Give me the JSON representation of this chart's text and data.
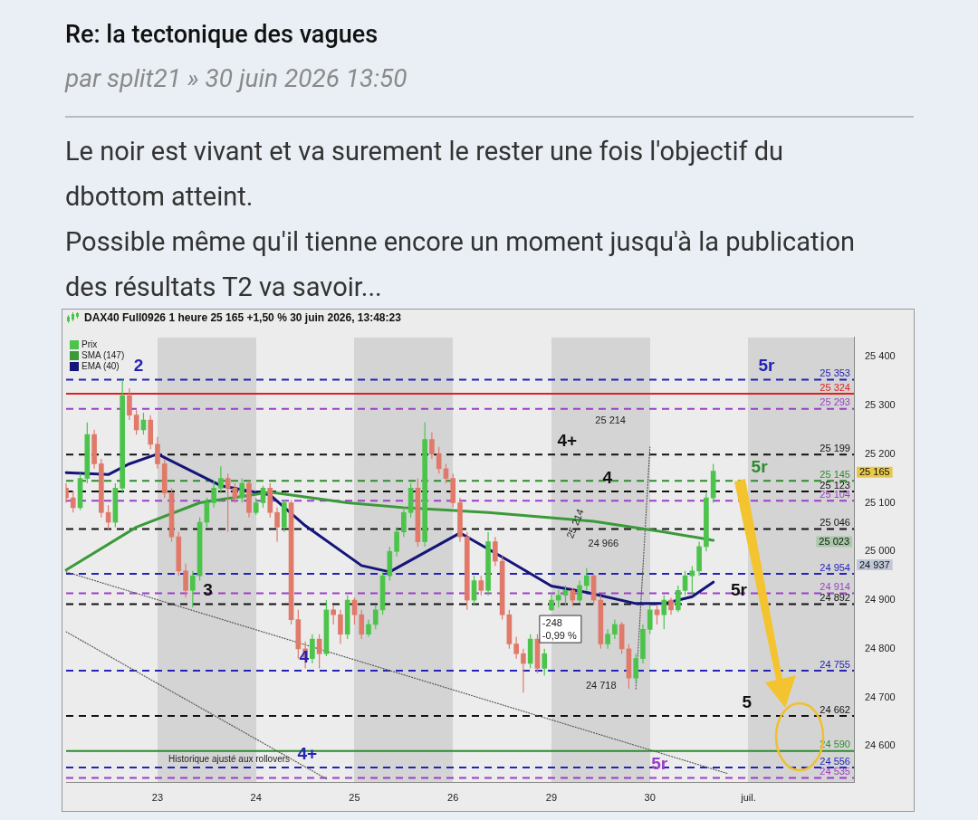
{
  "chart_data": {
    "type": "candlestick",
    "title": "Re: la tectonique des vagues",
    "subtitle": "par split21 » 30 juin 2026 13:50",
    "annotations": [
      "Le noir est vivant et va surement le rester une fois l'objectif du dbottom atteint.",
      "Possible même qu'il tienne encore un moment jusqu'à la publication des résultats T2 va savoir...",
      "DAX40 Full0926 1 heure 25 165 +1,50 % 30 juin 2026, 13:48:23",
      "Historique ajusté aux rollovers",
      "25 214",
      "25 214",
      "24 966",
      "24 718",
      "-248",
      "-0,99 %",
      "25 165",
      "25 023",
      "24 937",
      {
        "text": "2",
        "y": 25353
      },
      {
        "text": "3",
        "y": 24892
      },
      {
        "text": "4",
        "y": 24755
      },
      {
        "text": "4+",
        "y": 24556
      },
      {
        "text": "4+",
        "y": 25199
      },
      {
        "text": "4",
        "y": 25123
      },
      {
        "text": "5r",
        "y": 25353
      },
      {
        "text": "5r",
        "y": 25145
      },
      {
        "text": "5r",
        "y": 24892
      },
      {
        "text": "5",
        "y": 24662
      },
      {
        "text": "5r",
        "y": 24535
      }
    ],
    "categories": [
      null,
      null,
      null,
      null,
      null,
      null,
      null,
      null,
      null,
      null,
      null,
      null,
      null,
      "23",
      null,
      null,
      null,
      null,
      null,
      null,
      null,
      null,
      null,
      null,
      null,
      null,
      null,
      "24",
      null,
      null,
      null,
      null,
      null,
      null,
      null,
      null,
      null,
      null,
      null,
      null,
      null,
      "25",
      null,
      null,
      null,
      null,
      null,
      null,
      null,
      null,
      null,
      null,
      null,
      null,
      null,
      "26",
      null,
      null,
      null,
      null,
      null,
      null,
      null,
      null,
      null,
      null,
      null,
      null,
      null,
      "29",
      null,
      null,
      null,
      null,
      null,
      null,
      null,
      null,
      null,
      null,
      null,
      null,
      null,
      "30",
      null,
      null,
      null,
      null,
      null,
      null,
      null,
      null,
      null,
      null,
      null,
      null,
      null,
      "juil.",
      null,
      null,
      null,
      null,
      null,
      null,
      null,
      null,
      null,
      null,
      null,
      null,
      null,
      null,
      null
    ],
    "ylim": [
      24525,
      25440
    ],
    "yticks": [
      {
        "value": 24600,
        "label": "24 600"
      },
      {
        "value": 24700,
        "label": "24 700"
      },
      {
        "value": 24800,
        "label": "24 800"
      },
      {
        "value": 24900,
        "label": "24 900"
      },
      {
        "value": 25000,
        "label": "25 000"
      },
      {
        "value": 25100,
        "label": "25 100"
      },
      {
        "value": 25200,
        "label": "25 200"
      },
      {
        "value": 25300,
        "label": "25 300"
      },
      {
        "value": 25400,
        "label": "25 400"
      }
    ],
    "grid": false,
    "legend": "top left",
    "ref_lines": [
      {
        "axis": "y",
        "value": 25353,
        "label": "25 353",
        "color": "#2323b8",
        "line_style": "dashed"
      },
      {
        "axis": "y",
        "value": 25324,
        "label": "25 324",
        "color": "#e02020",
        "line_style": "solid"
      },
      {
        "axis": "y",
        "value": 25293,
        "label": "25 293",
        "color": "#9b3fc8",
        "line_style": "dashed"
      },
      {
        "axis": "y",
        "value": 25199,
        "label": "25 199",
        "color": "#111111",
        "line_style": "dashed"
      },
      {
        "axis": "y",
        "value": 25145,
        "label": "25 145",
        "color": "#2e8b2e",
        "line_style": "dashed"
      },
      {
        "axis": "y",
        "value": 25123,
        "label": "25 123",
        "color": "#111111",
        "line_style": "dashed"
      },
      {
        "axis": "y",
        "value": 25104,
        "label": "25 104",
        "color": "#9b3fc8",
        "line_style": "dashed"
      },
      {
        "axis": "y",
        "value": 25046,
        "label": "25 046",
        "color": "#111111",
        "line_style": "dashed"
      },
      {
        "axis": "y",
        "value": 24954,
        "label": "24 954",
        "color": "#2323b8",
        "line_style": "dashed"
      },
      {
        "axis": "y",
        "value": 24914,
        "label": "24 914",
        "color": "#9b3fc8",
        "line_style": "dashed"
      },
      {
        "axis": "y",
        "value": 24892,
        "label": "24 892",
        "color": "#111111",
        "line_style": "dashed"
      },
      {
        "axis": "y",
        "value": 24755,
        "label": "24 755",
        "color": "#2323b8",
        "line_style": "dashed"
      },
      {
        "axis": "y",
        "value": 24662,
        "label": "24 662",
        "color": "#111111",
        "line_style": "dashed"
      },
      {
        "axis": "y",
        "value": 24590,
        "label": "24 590",
        "color": "#2e8b2e",
        "line_style": "solid"
      },
      {
        "axis": "y",
        "value": 24556,
        "label": "24 556",
        "color": "#2323b8",
        "line_style": "dashed"
      },
      {
        "axis": "y",
        "value": 24535,
        "label": "24 535",
        "color": "#9b3fc8",
        "line_style": "dashed"
      }
    ],
    "series": [
      {
        "name": "Prix",
        "type": "candlestick",
        "color": "#4cc44c",
        "ohlc": [
          [
            25130,
            25140,
            25100,
            25110
          ],
          [
            25110,
            25125,
            25080,
            25090
          ],
          [
            25090,
            25160,
            25085,
            25150
          ],
          [
            25150,
            25265,
            25140,
            25240
          ],
          [
            25240,
            25250,
            25170,
            25180
          ],
          [
            25180,
            25190,
            25070,
            25080
          ],
          [
            25080,
            25095,
            25045,
            25060
          ],
          [
            25060,
            25140,
            25050,
            25130
          ],
          [
            25130,
            25353,
            25120,
            25320
          ],
          [
            25320,
            25335,
            25270,
            25280
          ],
          [
            25280,
            25290,
            25240,
            25250
          ],
          [
            25250,
            25285,
            25240,
            25270
          ],
          [
            25270,
            25280,
            25210,
            25220
          ],
          [
            25220,
            25235,
            25170,
            25180
          ],
          [
            25180,
            25190,
            25110,
            25120
          ],
          [
            25120,
            25130,
            25020,
            25030
          ],
          [
            25030,
            25040,
            24950,
            24960
          ],
          [
            24960,
            24975,
            24905,
            24920
          ],
          [
            24920,
            24960,
            24885,
            24950
          ],
          [
            24950,
            25070,
            24940,
            25060
          ],
          [
            25060,
            25110,
            25050,
            25100
          ],
          [
            25100,
            25145,
            25090,
            25130
          ],
          [
            25130,
            25175,
            25120,
            25150
          ],
          [
            25150,
            25160,
            25040,
            25130
          ],
          [
            25130,
            25140,
            25100,
            25110
          ],
          [
            25110,
            25150,
            25100,
            25140
          ],
          [
            25140,
            25145,
            25070,
            25080
          ],
          [
            25080,
            25110,
            25075,
            25100
          ],
          [
            25100,
            25135,
            25090,
            25130
          ],
          [
            25130,
            25140,
            25070,
            25080
          ],
          [
            25080,
            25090,
            25020,
            25050
          ],
          [
            25050,
            25105,
            25040,
            25100
          ],
          [
            25100,
            25105,
            24850,
            24860
          ],
          [
            24860,
            24880,
            24780,
            24800
          ],
          [
            24800,
            24815,
            24760,
            24780
          ],
          [
            24780,
            24830,
            24770,
            24820
          ],
          [
            24820,
            24830,
            24760,
            24790
          ],
          [
            24790,
            24900,
            24785,
            24880
          ],
          [
            24880,
            24890,
            24850,
            24870
          ],
          [
            24870,
            24880,
            24810,
            24830
          ],
          [
            24830,
            24910,
            24820,
            24900
          ],
          [
            24900,
            24905,
            24850,
            24870
          ],
          [
            24870,
            24880,
            24820,
            24830
          ],
          [
            24830,
            24860,
            24825,
            24850
          ],
          [
            24850,
            24890,
            24840,
            24880
          ],
          [
            24880,
            24960,
            24870,
            24950
          ],
          [
            24950,
            25010,
            24940,
            25000
          ],
          [
            25000,
            25050,
            24990,
            25040
          ],
          [
            25040,
            25090,
            25030,
            25080
          ],
          [
            25080,
            25140,
            25070,
            25130
          ],
          [
            25130,
            25150,
            25010,
            25020
          ],
          [
            25020,
            25265,
            25010,
            25230
          ],
          [
            25230,
            25245,
            25190,
            25200
          ],
          [
            25200,
            25215,
            25160,
            25170
          ],
          [
            25170,
            25180,
            25140,
            25150
          ],
          [
            25150,
            25160,
            25090,
            25100
          ],
          [
            25100,
            25110,
            25020,
            25030
          ],
          [
            25030,
            25040,
            24880,
            24900
          ],
          [
            24900,
            24950,
            24890,
            24940
          ],
          [
            24940,
            24950,
            24910,
            24920
          ],
          [
            24920,
            25040,
            24910,
            25020
          ],
          [
            25020,
            25030,
            24970,
            24980
          ],
          [
            24980,
            24990,
            24860,
            24870
          ],
          [
            24870,
            24880,
            24800,
            24810
          ],
          [
            24810,
            24825,
            24780,
            24790
          ],
          [
            24790,
            24800,
            24710,
            24770
          ],
          [
            24770,
            24830,
            24760,
            24820
          ],
          [
            24820,
            24830,
            24750,
            24760
          ],
          [
            24760,
            24800,
            24745,
            24790
          ],
          [
            24880,
            24915,
            24878,
            24900
          ],
          [
            24900,
            24920,
            24885,
            24910
          ],
          [
            24910,
            24930,
            24890,
            24920
          ],
          [
            24920,
            24925,
            24888,
            24900
          ],
          [
            24900,
            24940,
            24895,
            24930
          ],
          [
            24930,
            24966,
            24920,
            24950
          ],
          [
            24950,
            24955,
            24890,
            24900
          ],
          [
            24900,
            24910,
            24800,
            24810
          ],
          [
            24810,
            24840,
            24800,
            24830
          ],
          [
            24830,
            24860,
            24820,
            24850
          ],
          [
            24850,
            24855,
            24790,
            24800
          ],
          [
            24800,
            24810,
            24718,
            24740
          ],
          [
            24740,
            24790,
            24730,
            24780
          ],
          [
            24780,
            24850,
            24770,
            24840
          ],
          [
            24840,
            24890,
            24830,
            24880
          ],
          [
            24880,
            24890,
            24850,
            24870
          ],
          [
            24870,
            24910,
            24840,
            24900
          ],
          [
            24900,
            24905,
            24870,
            24880
          ],
          [
            24880,
            24930,
            24875,
            24920
          ],
          [
            24920,
            24960,
            24910,
            24950
          ],
          [
            24950,
            24970,
            24910,
            24960
          ],
          [
            24960,
            25020,
            24950,
            25010
          ],
          [
            25010,
            25120,
            25000,
            25110
          ],
          [
            25110,
            25180,
            25100,
            25165
          ],
          null,
          null,
          null,
          null,
          null,
          null,
          null,
          null,
          null,
          null,
          null,
          null,
          null,
          null,
          null,
          null,
          null,
          null,
          null,
          null
        ],
        "colors": [
          "#e07a6a",
          "#e07a6a",
          "#4cc44c",
          "#4cc44c",
          "#e07a6a",
          "#e07a6a",
          "#e07a6a",
          "#4cc44c",
          "#4cc44c",
          "#e07a6a",
          "#e07a6a",
          "#4cc44c",
          "#e07a6a",
          "#e07a6a",
          "#e07a6a",
          "#e07a6a",
          "#e07a6a",
          "#e07a6a",
          "#4cc44c",
          "#4cc44c",
          "#4cc44c",
          "#4cc44c",
          "#4cc44c",
          "#e07a6a",
          "#e07a6a",
          "#4cc44c",
          "#e07a6a",
          "#4cc44c",
          "#4cc44c",
          "#e07a6a",
          "#e07a6a",
          "#4cc44c",
          "#e07a6a",
          "#e07a6a",
          "#e07a6a",
          "#4cc44c",
          "#e07a6a",
          "#4cc44c",
          "#e07a6a",
          "#e07a6a",
          "#4cc44c",
          "#e07a6a",
          "#e07a6a",
          "#4cc44c",
          "#4cc44c",
          "#4cc44c",
          "#4cc44c",
          "#4cc44c",
          "#4cc44c",
          "#4cc44c",
          "#e07a6a",
          "#4cc44c",
          "#e07a6a",
          "#e07a6a",
          "#e07a6a",
          "#e07a6a",
          "#e07a6a",
          "#e07a6a",
          "#4cc44c",
          "#e07a6a",
          "#4cc44c",
          "#e07a6a",
          "#e07a6a",
          "#e07a6a",
          "#e07a6a",
          "#e07a6a",
          "#4cc44c",
          "#e07a6a",
          "#4cc44c",
          "#4cc44c",
          "#4cc44c",
          "#4cc44c",
          "#e07a6a",
          "#4cc44c",
          "#4cc44c",
          "#e07a6a",
          "#e07a6a",
          "#4cc44c",
          "#4cc44c",
          "#e07a6a",
          "#e07a6a",
          "#4cc44c",
          "#4cc44c",
          "#4cc44c",
          "#e07a6a",
          "#4cc44c",
          "#e07a6a",
          "#4cc44c",
          "#4cc44c",
          "#4cc44c",
          "#4cc44c",
          "#4cc44c",
          "#4cc44c",
          null,
          null,
          null,
          null,
          null,
          null,
          null,
          null,
          null,
          null,
          null,
          null,
          null,
          null,
          null,
          null,
          null,
          null,
          null,
          null
        ]
      },
      {
        "name": "SMA (147)",
        "type": "line",
        "color": "#3a9a3a",
        "values": [
          24962,
          null,
          null,
          null,
          null,
          null,
          null,
          null,
          null,
          null,
          25050,
          null,
          null,
          null,
          null,
          null,
          null,
          null,
          null,
          25100,
          null,
          null,
          null,
          null,
          null,
          null,
          null,
          null,
          null,
          25122,
          null,
          null,
          null,
          null,
          null,
          null,
          null,
          null,
          null,
          null,
          25100,
          null,
          null,
          null,
          null,
          null,
          null,
          null,
          25090,
          null,
          null,
          null,
          null,
          null,
          null,
          null,
          null,
          null,
          null,
          null,
          25080,
          null,
          null,
          null,
          null,
          null,
          null,
          null,
          null,
          null,
          null,
          null,
          null,
          null,
          null,
          25062,
          null,
          null,
          null,
          null,
          null,
          null,
          null,
          null,
          null,
          25040,
          null,
          null,
          null,
          null,
          null,
          null,
          25023,
          null,
          null,
          null,
          null,
          null,
          null,
          null,
          null,
          null,
          null,
          null,
          null,
          null,
          null,
          null,
          null,
          null,
          null,
          null,
          null
        ]
      },
      {
        "name": "EMA (40)",
        "type": "line",
        "color": "#14147a",
        "values": [
          25162,
          null,
          null,
          null,
          null,
          null,
          25158,
          null,
          null,
          25180,
          null,
          null,
          null,
          25200,
          null,
          null,
          null,
          null,
          null,
          null,
          null,
          null,
          25135,
          null,
          null,
          null,
          null,
          null,
          null,
          25116,
          null,
          null,
          null,
          null,
          25053,
          null,
          null,
          null,
          null,
          null,
          null,
          null,
          24971,
          null,
          null,
          null,
          24958,
          null,
          null,
          null,
          null,
          24998,
          null,
          null,
          null,
          null,
          25038,
          null,
          null,
          null,
          null,
          null,
          null,
          24980,
          null,
          null,
          null,
          null,
          null,
          24929,
          null,
          null,
          null,
          null,
          24916,
          null,
          null,
          null,
          null,
          null,
          null,
          24893,
          null,
          null,
          null,
          24893,
          null,
          null,
          null,
          24907,
          null,
          null,
          24937,
          null,
          null,
          null,
          null,
          null,
          null,
          null,
          null,
          null,
          null,
          null,
          null,
          null,
          null,
          null,
          null,
          null,
          null,
          null,
          null
        ]
      },
      {
        "type": "line",
        "color": "#555555",
        "line_style": "dotted",
        "values": [
          24958,
          null,
          null,
          null,
          null,
          null,
          null,
          null,
          null,
          null,
          null,
          null,
          null,
          null,
          null,
          null,
          null,
          null,
          null,
          null,
          null,
          null,
          null,
          null,
          null,
          null,
          null,
          null,
          null,
          null,
          null,
          null,
          null,
          null,
          null,
          null,
          null,
          null,
          null,
          null,
          null,
          null,
          null,
          null,
          null,
          null,
          null,
          null,
          null,
          null,
          null,
          null,
          null,
          null,
          null,
          null,
          null,
          null,
          null,
          null,
          null,
          null,
          null,
          null,
          null,
          null,
          null,
          null,
          null,
          null,
          null,
          null,
          null,
          null,
          null,
          null,
          null,
          null,
          null,
          null,
          null,
          null,
          null,
          null,
          null,
          null,
          null,
          null,
          null,
          null,
          null,
          null,
          null,
          null,
          24544,
          null,
          null,
          null,
          null,
          null,
          null,
          null,
          null,
          null,
          null,
          null,
          null,
          null,
          null,
          null,
          null,
          null,
          null
        ]
      },
      {
        "type": "line",
        "color": "#555555",
        "line_style": "dotted",
        "values": [
          24835,
          null,
          null,
          null,
          null,
          null,
          null,
          null,
          null,
          null,
          null,
          null,
          null,
          null,
          null,
          null,
          null,
          null,
          null,
          null,
          null,
          null,
          null,
          null,
          null,
          null,
          null,
          null,
          null,
          null,
          null,
          null,
          null,
          null,
          null,
          null,
          null,
          24533,
          null,
          null,
          null,
          null,
          null,
          null,
          null,
          null,
          null,
          null,
          null,
          null,
          null,
          null,
          null,
          null,
          null,
          null,
          null,
          null,
          null,
          null,
          null,
          null,
          null,
          null,
          null,
          null,
          null,
          null,
          null,
          null,
          null,
          null,
          null,
          null,
          null,
          null,
          null,
          null,
          null,
          null,
          null,
          null,
          null,
          null,
          null,
          null,
          null,
          null,
          null,
          null,
          null,
          null,
          null,
          null,
          null,
          null,
          null,
          null,
          null,
          null,
          null,
          null,
          null,
          null,
          null,
          null,
          null,
          null,
          null,
          null,
          null,
          null,
          null
        ]
      },
      {
        "type": "line",
        "color": "#555555",
        "line_style": "dotted",
        "values": [
          null,
          null,
          null,
          null,
          null,
          null,
          null,
          null,
          null,
          null,
          null,
          null,
          null,
          null,
          null,
          null,
          null,
          null,
          null,
          null,
          null,
          null,
          null,
          null,
          null,
          null,
          null,
          null,
          null,
          null,
          null,
          null,
          null,
          null,
          null,
          null,
          null,
          null,
          null,
          null,
          null,
          null,
          null,
          null,
          null,
          null,
          null,
          null,
          null,
          null,
          null,
          null,
          null,
          null,
          null,
          null,
          null,
          null,
          null,
          null,
          null,
          null,
          null,
          null,
          null,
          null,
          null,
          null,
          null,
          null,
          null,
          null,
          null,
          null,
          null,
          null,
          null,
          null,
          null,
          null,
          null,
          24718,
          null,
          25214,
          null,
          null,
          null,
          null,
          null,
          null,
          null,
          null,
          null,
          null,
          null,
          null,
          null,
          null,
          null,
          null,
          null,
          null,
          null,
          null,
          null,
          null,
          null,
          null,
          null,
          null,
          null,
          null,
          null
        ]
      }
    ]
  }
}
